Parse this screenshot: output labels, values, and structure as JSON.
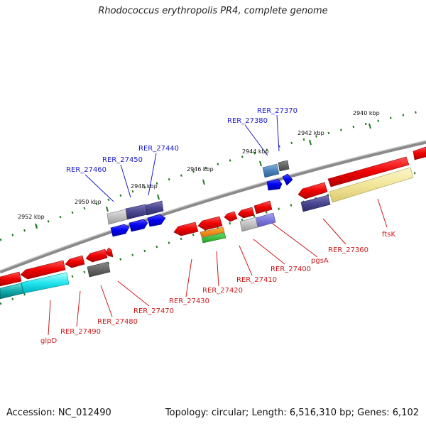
{
  "title": "Rhodococcus erythropolis PR4, complete genome",
  "footer": {
    "accession": "Accession: NC_012490",
    "summary": "Topology: circular; Length: 6,516,310 bp; Genes: 6,102"
  },
  "colors": {
    "backbone": "#8a8a8a",
    "tick": "#1e7a1e",
    "label_forward": "#1a1acc",
    "label_reverse": "#cc1a1a"
  },
  "kbp_labels": [
    {
      "text": "2940 kbp"
    },
    {
      "text": "2942 kbp"
    },
    {
      "text": "2944 kbp"
    },
    {
      "text": "2946 kbp"
    },
    {
      "text": "2948 kbp"
    },
    {
      "text": "2950 kbp"
    },
    {
      "text": "2952 kbp"
    }
  ],
  "gene_labels": [
    {
      "text": "RER_27370",
      "strand": "forward"
    },
    {
      "text": "RER_27380",
      "strand": "forward"
    },
    {
      "text": "RER_27440",
      "strand": "forward"
    },
    {
      "text": "RER_27450",
      "strand": "forward"
    },
    {
      "text": "RER_27460",
      "strand": "forward"
    },
    {
      "text": "ftsK",
      "strand": "reverse"
    },
    {
      "text": "RER_27360",
      "strand": "reverse"
    },
    {
      "text": "pgsA",
      "strand": "reverse"
    },
    {
      "text": "RER_27400",
      "strand": "reverse"
    },
    {
      "text": "RER_27410",
      "strand": "reverse"
    },
    {
      "text": "RER_27420",
      "strand": "reverse"
    },
    {
      "text": "RER_27430",
      "strand": "reverse"
    },
    {
      "text": "RER_27470",
      "strand": "reverse"
    },
    {
      "text": "RER_27480",
      "strand": "reverse"
    },
    {
      "text": "RER_27490",
      "strand": "reverse"
    },
    {
      "text": "glpD",
      "strand": "reverse"
    }
  ]
}
